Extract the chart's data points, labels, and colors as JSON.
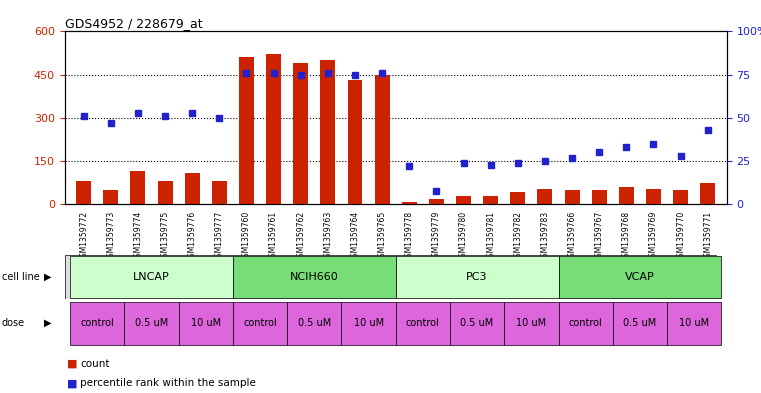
{
  "title": "GDS4952 / 228679_at",
  "samples": [
    "GSM1359772",
    "GSM1359773",
    "GSM1359774",
    "GSM1359775",
    "GSM1359776",
    "GSM1359777",
    "GSM1359760",
    "GSM1359761",
    "GSM1359762",
    "GSM1359763",
    "GSM1359764",
    "GSM1359765",
    "GSM1359778",
    "GSM1359779",
    "GSM1359780",
    "GSM1359781",
    "GSM1359782",
    "GSM1359783",
    "GSM1359766",
    "GSM1359767",
    "GSM1359768",
    "GSM1359769",
    "GSM1359770",
    "GSM1359771"
  ],
  "counts": [
    82,
    50,
    115,
    80,
    108,
    80,
    510,
    520,
    490,
    500,
    430,
    450,
    8,
    18,
    30,
    30,
    42,
    55,
    50,
    50,
    60,
    55,
    50,
    75
  ],
  "percentiles": [
    51,
    47,
    53,
    51,
    53,
    50,
    76,
    76,
    75,
    76,
    75,
    76,
    22,
    8,
    24,
    23,
    24,
    25,
    27,
    30,
    33,
    35,
    28,
    43
  ],
  "cell_lines": [
    "LNCAP",
    "NCIH660",
    "PC3",
    "VCAP"
  ],
  "cell_line_spans": [
    [
      0,
      6
    ],
    [
      6,
      12
    ],
    [
      12,
      18
    ],
    [
      18,
      24
    ]
  ],
  "cell_line_colors": [
    "#ccffcc",
    "#77dd77",
    "#ccffcc",
    "#77dd77"
  ],
  "doses": [
    [
      "control",
      0,
      2
    ],
    [
      "0.5 uM",
      2,
      4
    ],
    [
      "10 uM",
      4,
      6
    ],
    [
      "control",
      6,
      8
    ],
    [
      "0.5 uM",
      8,
      10
    ],
    [
      "10 uM",
      10,
      12
    ],
    [
      "control",
      12,
      14
    ],
    [
      "0.5 uM",
      14,
      16
    ],
    [
      "10 uM",
      16,
      18
    ],
    [
      "control",
      18,
      20
    ],
    [
      "0.5 uM",
      20,
      22
    ],
    [
      "10 uM",
      22,
      24
    ]
  ],
  "dose_color": "#dd66dd",
  "bar_color": "#cc2200",
  "dot_color": "#2222cc",
  "ylim_left": [
    0,
    600
  ],
  "ylim_right": [
    0,
    100
  ],
  "yticks_left": [
    0,
    150,
    300,
    450,
    600
  ],
  "yticks_right": [
    0,
    25,
    50,
    75,
    100
  ]
}
